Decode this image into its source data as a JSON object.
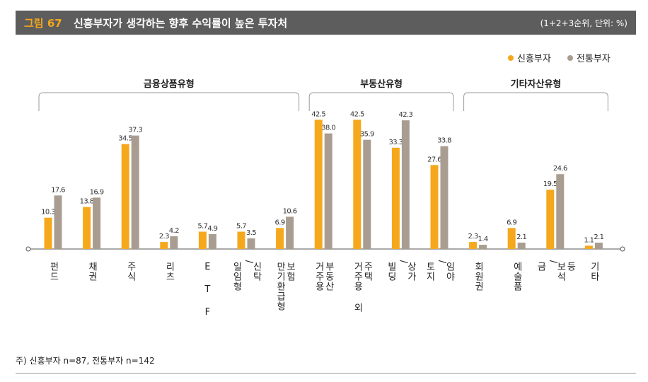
{
  "header": {
    "figure_number": "그림 67",
    "title": "신흥부자가 생각하는 향후 수익률이 높은 투자처",
    "unit": "(1+2+3순위, 단위: %)"
  },
  "chart_data": {
    "type": "bar",
    "title": "신흥부자가 생각하는 향후 수익률이 높은 투자처",
    "unit": "%",
    "ylim": [
      0,
      45
    ],
    "grid": false,
    "legend_position": "top-right",
    "series": [
      {
        "name": "신흥부자",
        "color": "#f5a81c",
        "values": [
          10.3,
          13.8,
          34.5,
          2.3,
          5.7,
          5.7,
          6.9,
          42.5,
          42.5,
          33.3,
          27.6,
          2.3,
          6.9,
          19.5,
          1.1
        ]
      },
      {
        "name": "전통부자",
        "color": "#a89d90",
        "values": [
          17.6,
          16.9,
          37.3,
          4.2,
          4.9,
          3.5,
          10.6,
          38.0,
          35.9,
          42.3,
          33.8,
          1.4,
          2.1,
          24.6,
          2.1
        ]
      }
    ],
    "categories": [
      "펀드",
      "채권",
      "주식",
      "리츠",
      "ETF",
      "일임형/신탁",
      "만기환급형 보험",
      "거주용 부동산",
      "거주용 외 주택",
      "빌딩/상가",
      "토지/임야",
      "회원권",
      "예술품",
      "금/보석 등",
      "기타"
    ],
    "category_lines": [
      [
        "펀드"
      ],
      [
        "채권"
      ],
      [
        "주식"
      ],
      [
        "리츠"
      ],
      [
        "E T F"
      ],
      [
        "일임형",
        "/",
        "신탁"
      ],
      [
        "만기환급형",
        "보험"
      ],
      [
        "거주용",
        "부동산"
      ],
      [
        "거주용 외",
        "주택"
      ],
      [
        "빌딩",
        "/",
        "상가"
      ],
      [
        "토지",
        "/",
        "임야"
      ],
      [
        "회원권"
      ],
      [
        "예술품"
      ],
      [
        "금",
        "/",
        "보석",
        "등"
      ],
      [
        "기타"
      ]
    ],
    "value_labels": [
      [
        "10.3",
        "17.6"
      ],
      [
        "13.8",
        "16.9"
      ],
      [
        "34.5",
        "37.3"
      ],
      [
        "2.3",
        "4.2"
      ],
      [
        "5.7",
        "4.9"
      ],
      [
        "5.7",
        "3.5"
      ],
      [
        "6.9",
        "10.6"
      ],
      [
        "42.5",
        "38.0"
      ],
      [
        "42.5",
        "35.9"
      ],
      [
        "33.3",
        "42.3"
      ],
      [
        "27.6",
        "33.8"
      ],
      [
        "2.3",
        "1.4"
      ],
      [
        "6.9",
        "2.1"
      ],
      [
        "19.5",
        "24.6"
      ],
      [
        "1.1",
        "2.1"
      ]
    ],
    "groups": [
      {
        "label": "금융상품유형",
        "from": 0,
        "to": 6
      },
      {
        "label": "부동산유형",
        "from": 7,
        "to": 10
      },
      {
        "label": "기타자산유형",
        "from": 11,
        "to": 14
      }
    ]
  },
  "footnote": "주) 신흥부자 n=87, 전통부자 n=142"
}
